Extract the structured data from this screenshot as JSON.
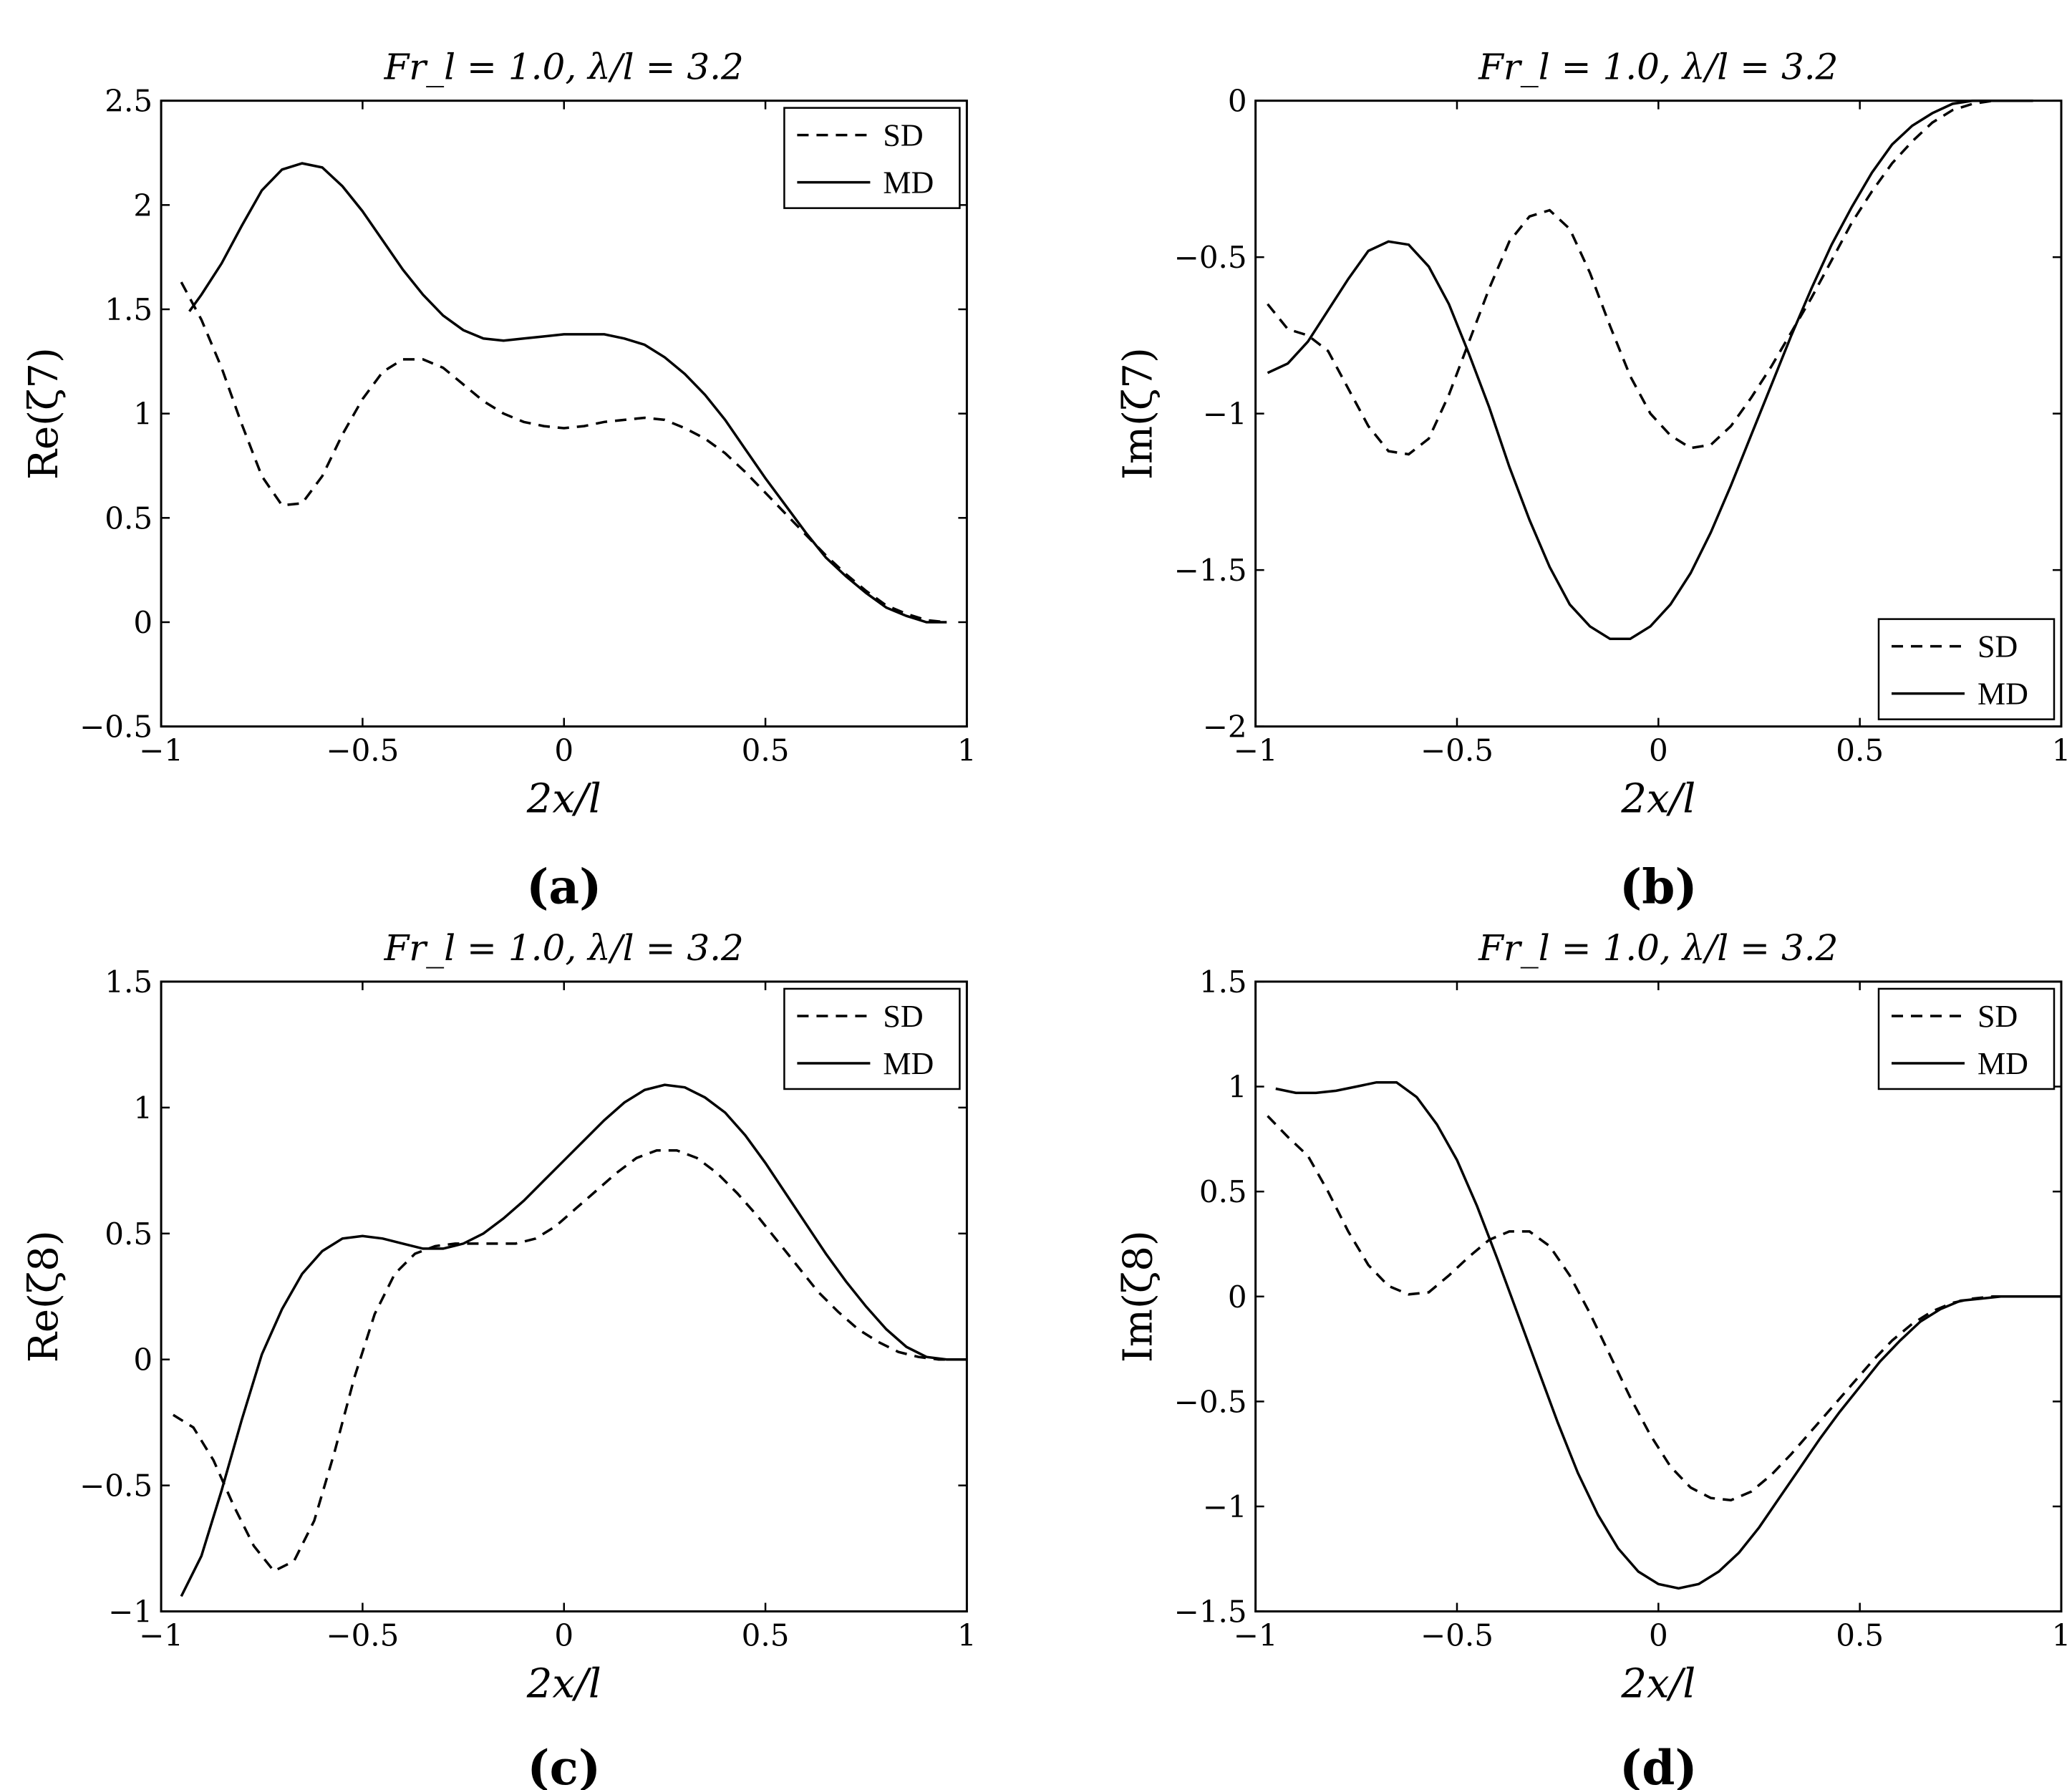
{
  "figure": {
    "colors": {
      "line": "#000000",
      "background": "#ffffff"
    }
  },
  "chart_data": [
    {
      "id": "a",
      "type": "line",
      "panel_label": "(a)",
      "title": "Fr_l = 1.0, λ/l = 3.2",
      "xlabel": "2x/l",
      "ylabel": "Re(ζ7)",
      "xlim": [
        -1,
        1
      ],
      "ylim": [
        -0.5,
        2.5
      ],
      "xticks": [
        -1,
        -0.5,
        0,
        0.5,
        1
      ],
      "xtick_labels": [
        "−1",
        "−0.5",
        "0",
        "0.5",
        "1"
      ],
      "yticks": [
        -0.5,
        0,
        0.5,
        1,
        1.5,
        2,
        2.5
      ],
      "ytick_labels": [
        "−0.5",
        "0",
        "0.5",
        "1",
        "1.5",
        "2",
        "2.5"
      ],
      "legend": {
        "position": "top-right",
        "entries": [
          "SD",
          "MD"
        ]
      },
      "series": [
        {
          "name": "SD",
          "style": "dashed",
          "x": [
            -0.95,
            -0.9,
            -0.85,
            -0.8,
            -0.75,
            -0.7,
            -0.65,
            -0.6,
            -0.55,
            -0.5,
            -0.45,
            -0.4,
            -0.35,
            -0.3,
            -0.25,
            -0.2,
            -0.15,
            -0.1,
            -0.05,
            0,
            0.05,
            0.1,
            0.15,
            0.2,
            0.25,
            0.3,
            0.35,
            0.4,
            0.45,
            0.5,
            0.55,
            0.6,
            0.65,
            0.7,
            0.75,
            0.8,
            0.85,
            0.9,
            0.95
          ],
          "y": [
            1.63,
            1.45,
            1.22,
            0.95,
            0.7,
            0.56,
            0.57,
            0.7,
            0.9,
            1.07,
            1.2,
            1.26,
            1.26,
            1.22,
            1.14,
            1.06,
            1.0,
            0.96,
            0.94,
            0.93,
            0.94,
            0.96,
            0.97,
            0.98,
            0.97,
            0.93,
            0.88,
            0.81,
            0.72,
            0.62,
            0.52,
            0.42,
            0.32,
            0.23,
            0.15,
            0.08,
            0.04,
            0.01,
            0.0
          ]
        },
        {
          "name": "MD",
          "style": "solid",
          "x": [
            -0.93,
            -0.9,
            -0.85,
            -0.8,
            -0.75,
            -0.7,
            -0.65,
            -0.6,
            -0.55,
            -0.5,
            -0.45,
            -0.4,
            -0.35,
            -0.3,
            -0.25,
            -0.2,
            -0.15,
            -0.1,
            -0.05,
            0,
            0.05,
            0.1,
            0.15,
            0.2,
            0.25,
            0.3,
            0.35,
            0.4,
            0.45,
            0.5,
            0.55,
            0.6,
            0.65,
            0.7,
            0.75,
            0.8,
            0.85,
            0.9,
            0.95
          ],
          "y": [
            1.49,
            1.57,
            1.72,
            1.9,
            2.07,
            2.17,
            2.2,
            2.18,
            2.09,
            1.97,
            1.83,
            1.69,
            1.57,
            1.47,
            1.4,
            1.36,
            1.35,
            1.36,
            1.37,
            1.38,
            1.38,
            1.38,
            1.36,
            1.33,
            1.27,
            1.19,
            1.09,
            0.97,
            0.83,
            0.69,
            0.56,
            0.43,
            0.31,
            0.22,
            0.14,
            0.07,
            0.03,
            0.0,
            0.0
          ]
        }
      ]
    },
    {
      "id": "b",
      "type": "line",
      "panel_label": "(b)",
      "title": "Fr_l = 1.0, λ/l = 3.2",
      "xlabel": "2x/l",
      "ylabel": "Im(ζ7)",
      "xlim": [
        -1,
        1
      ],
      "ylim": [
        -2,
        0
      ],
      "xticks": [
        -1,
        -0.5,
        0,
        0.5,
        1
      ],
      "xtick_labels": [
        "−1",
        "−0.5",
        "0",
        "0.5",
        "1"
      ],
      "yticks": [
        -2,
        -1.5,
        -1,
        -0.5,
        0
      ],
      "ytick_labels": [
        "−2",
        "−1.5",
        "−1",
        "−0.5",
        "0"
      ],
      "legend": {
        "position": "bottom-right",
        "entries": [
          "SD",
          "MD"
        ]
      },
      "series": [
        {
          "name": "SD",
          "style": "dashed",
          "x": [
            -0.97,
            -0.92,
            -0.87,
            -0.82,
            -0.77,
            -0.72,
            -0.67,
            -0.62,
            -0.57,
            -0.52,
            -0.47,
            -0.42,
            -0.37,
            -0.32,
            -0.27,
            -0.22,
            -0.17,
            -0.12,
            -0.07,
            -0.02,
            0.03,
            0.08,
            0.13,
            0.18,
            0.23,
            0.28,
            0.33,
            0.38,
            0.43,
            0.48,
            0.53,
            0.58,
            0.63,
            0.68,
            0.73,
            0.78,
            0.83,
            0.88,
            0.93
          ],
          "y": [
            -0.65,
            -0.73,
            -0.75,
            -0.8,
            -0.92,
            -1.04,
            -1.12,
            -1.13,
            -1.08,
            -0.94,
            -0.77,
            -0.6,
            -0.45,
            -0.37,
            -0.35,
            -0.41,
            -0.55,
            -0.72,
            -0.88,
            -1.0,
            -1.07,
            -1.11,
            -1.1,
            -1.04,
            -0.95,
            -0.85,
            -0.74,
            -0.63,
            -0.51,
            -0.39,
            -0.29,
            -0.2,
            -0.13,
            -0.07,
            -0.03,
            -0.01,
            0.0,
            0.0,
            0.0
          ]
        },
        {
          "name": "MD",
          "style": "solid",
          "x": [
            -0.97,
            -0.92,
            -0.87,
            -0.82,
            -0.77,
            -0.72,
            -0.67,
            -0.62,
            -0.57,
            -0.52,
            -0.47,
            -0.42,
            -0.37,
            -0.32,
            -0.27,
            -0.22,
            -0.17,
            -0.12,
            -0.07,
            -0.02,
            0.03,
            0.08,
            0.13,
            0.18,
            0.23,
            0.28,
            0.33,
            0.38,
            0.43,
            0.48,
            0.53,
            0.58,
            0.63,
            0.68,
            0.73,
            0.78,
            0.83,
            0.88,
            0.93
          ],
          "y": [
            -0.87,
            -0.84,
            -0.77,
            -0.67,
            -0.57,
            -0.48,
            -0.45,
            -0.46,
            -0.53,
            -0.65,
            -0.81,
            -0.98,
            -1.17,
            -1.34,
            -1.49,
            -1.61,
            -1.68,
            -1.72,
            -1.72,
            -1.68,
            -1.61,
            -1.51,
            -1.38,
            -1.23,
            -1.07,
            -0.91,
            -0.75,
            -0.6,
            -0.46,
            -0.34,
            -0.23,
            -0.14,
            -0.08,
            -0.04,
            -0.01,
            0.0,
            0.0,
            0.0,
            0.0
          ]
        }
      ]
    },
    {
      "id": "c",
      "type": "line",
      "panel_label": "(c)",
      "title": "Fr_l = 1.0, λ/l = 3.2",
      "xlabel": "2x/l",
      "ylabel": "Re(ζ8)",
      "xlim": [
        -1,
        1
      ],
      "ylim": [
        -1,
        1.5
      ],
      "xticks": [
        -1,
        -0.5,
        0,
        0.5,
        1
      ],
      "xtick_labels": [
        "−1",
        "−0.5",
        "0",
        "0.5",
        "1"
      ],
      "yticks": [
        -1,
        -0.5,
        0,
        0.5,
        1,
        1.5
      ],
      "ytick_labels": [
        "−1",
        "−0.5",
        "0",
        "0.5",
        "1",
        "1.5"
      ],
      "legend": {
        "position": "top-right",
        "entries": [
          "SD",
          "MD"
        ]
      },
      "series": [
        {
          "name": "SD",
          "style": "dashed",
          "x": [
            -0.97,
            -0.92,
            -0.87,
            -0.82,
            -0.77,
            -0.72,
            -0.67,
            -0.62,
            -0.57,
            -0.52,
            -0.47,
            -0.42,
            -0.37,
            -0.32,
            -0.27,
            -0.22,
            -0.17,
            -0.12,
            -0.07,
            -0.02,
            0.03,
            0.08,
            0.13,
            0.18,
            0.23,
            0.28,
            0.33,
            0.38,
            0.43,
            0.48,
            0.53,
            0.58,
            0.63,
            0.68,
            0.73,
            0.78,
            0.83,
            0.88,
            0.93,
            0.98
          ],
          "y": [
            -0.22,
            -0.27,
            -0.4,
            -0.58,
            -0.74,
            -0.84,
            -0.8,
            -0.64,
            -0.37,
            -0.07,
            0.18,
            0.34,
            0.42,
            0.45,
            0.46,
            0.46,
            0.46,
            0.46,
            0.48,
            0.53,
            0.6,
            0.67,
            0.74,
            0.8,
            0.83,
            0.83,
            0.8,
            0.74,
            0.66,
            0.57,
            0.47,
            0.37,
            0.27,
            0.19,
            0.12,
            0.07,
            0.03,
            0.01,
            0.0,
            0.0
          ]
        },
        {
          "name": "MD",
          "style": "solid",
          "x": [
            -0.95,
            -0.9,
            -0.85,
            -0.8,
            -0.75,
            -0.7,
            -0.65,
            -0.6,
            -0.55,
            -0.5,
            -0.45,
            -0.4,
            -0.35,
            -0.3,
            -0.25,
            -0.2,
            -0.15,
            -0.1,
            -0.05,
            0,
            0.05,
            0.1,
            0.15,
            0.2,
            0.25,
            0.3,
            0.35,
            0.4,
            0.45,
            0.5,
            0.55,
            0.6,
            0.65,
            0.7,
            0.75,
            0.8,
            0.85,
            0.9,
            0.95,
            1.0
          ],
          "y": [
            -0.94,
            -0.78,
            -0.52,
            -0.24,
            0.02,
            0.2,
            0.34,
            0.43,
            0.48,
            0.49,
            0.48,
            0.46,
            0.44,
            0.44,
            0.46,
            0.5,
            0.56,
            0.63,
            0.71,
            0.79,
            0.87,
            0.95,
            1.02,
            1.07,
            1.09,
            1.08,
            1.04,
            0.98,
            0.89,
            0.78,
            0.66,
            0.54,
            0.42,
            0.31,
            0.21,
            0.12,
            0.05,
            0.01,
            0.0,
            0.0
          ]
        }
      ]
    },
    {
      "id": "d",
      "type": "line",
      "panel_label": "(d)",
      "title": "Fr_l = 1.0, λ/l = 3.2",
      "xlabel": "2x/l",
      "ylabel": "Im(ζ8)",
      "xlim": [
        -1,
        1
      ],
      "ylim": [
        -1.5,
        1.5
      ],
      "xticks": [
        -1,
        -0.5,
        0,
        0.5,
        1
      ],
      "xtick_labels": [
        "−1",
        "−0.5",
        "0",
        "0.5",
        "1"
      ],
      "yticks": [
        -1.5,
        -1,
        -0.5,
        0,
        0.5,
        1,
        1.5
      ],
      "ytick_labels": [
        "−1.5",
        "−1",
        "−0.5",
        "0",
        "0.5",
        "1",
        "1.5"
      ],
      "legend": {
        "position": "top-right",
        "entries": [
          "SD",
          "MD"
        ]
      },
      "series": [
        {
          "name": "SD",
          "style": "dashed",
          "x": [
            -0.97,
            -0.92,
            -0.87,
            -0.82,
            -0.77,
            -0.72,
            -0.67,
            -0.62,
            -0.57,
            -0.52,
            -0.47,
            -0.42,
            -0.37,
            -0.32,
            -0.27,
            -0.22,
            -0.17,
            -0.12,
            -0.07,
            -0.02,
            0.03,
            0.08,
            0.13,
            0.18,
            0.23,
            0.28,
            0.33,
            0.38,
            0.43,
            0.48,
            0.53,
            0.58,
            0.63,
            0.68,
            0.73,
            0.78,
            0.83,
            0.88,
            0.93,
            0.98
          ],
          "y": [
            0.86,
            0.76,
            0.67,
            0.5,
            0.31,
            0.15,
            0.05,
            0.01,
            0.02,
            0.1,
            0.19,
            0.27,
            0.31,
            0.31,
            0.24,
            0.1,
            -0.08,
            -0.28,
            -0.48,
            -0.66,
            -0.81,
            -0.91,
            -0.96,
            -0.97,
            -0.93,
            -0.85,
            -0.75,
            -0.64,
            -0.53,
            -0.42,
            -0.31,
            -0.21,
            -0.13,
            -0.07,
            -0.03,
            -0.01,
            0.0,
            0.0,
            0.0,
            0.0
          ]
        },
        {
          "name": "MD",
          "style": "solid",
          "x": [
            -0.95,
            -0.9,
            -0.85,
            -0.8,
            -0.75,
            -0.7,
            -0.65,
            -0.6,
            -0.55,
            -0.5,
            -0.45,
            -0.4,
            -0.35,
            -0.3,
            -0.25,
            -0.2,
            -0.15,
            -0.1,
            -0.05,
            0,
            0.05,
            0.1,
            0.15,
            0.2,
            0.25,
            0.3,
            0.35,
            0.4,
            0.45,
            0.5,
            0.55,
            0.6,
            0.65,
            0.7,
            0.75,
            0.8,
            0.85,
            0.9,
            0.95,
            1.0
          ],
          "y": [
            0.99,
            0.97,
            0.97,
            0.98,
            1.0,
            1.02,
            1.02,
            0.95,
            0.82,
            0.65,
            0.43,
            0.18,
            -0.08,
            -0.34,
            -0.6,
            -0.84,
            -1.04,
            -1.2,
            -1.31,
            -1.37,
            -1.39,
            -1.37,
            -1.31,
            -1.22,
            -1.1,
            -0.96,
            -0.82,
            -0.68,
            -0.55,
            -0.43,
            -0.31,
            -0.21,
            -0.12,
            -0.06,
            -0.02,
            -0.01,
            0.0,
            0.0,
            0.0,
            0.0
          ]
        }
      ]
    }
  ]
}
